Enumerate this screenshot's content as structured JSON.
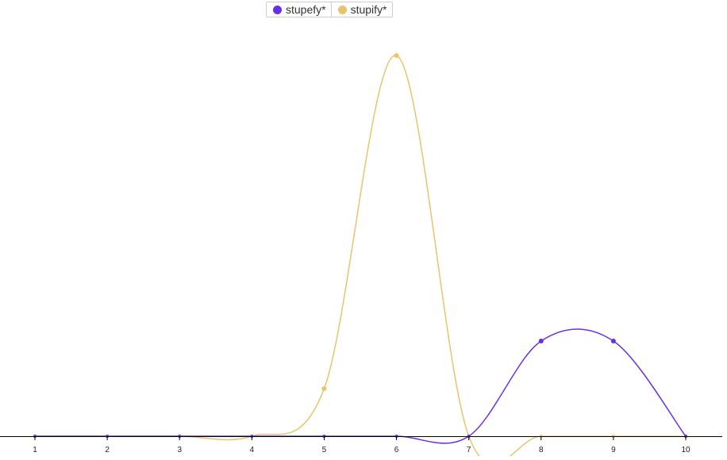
{
  "chart_data": {
    "type": "line",
    "categories": [
      "1",
      "2",
      "3",
      "4",
      "5",
      "6",
      "7",
      "8",
      "9",
      "10"
    ],
    "x": [
      1,
      2,
      3,
      4,
      5,
      6,
      7,
      8,
      9,
      10
    ],
    "series": [
      {
        "name": "stupefy*",
        "color": "#6a2ee8",
        "values": [
          0,
          0,
          0,
          0,
          0,
          0,
          0,
          0.25,
          0.25,
          0
        ]
      },
      {
        "name": "stupify*",
        "color": "#e6c56e",
        "values": [
          0,
          0,
          0,
          0,
          0.125,
          1,
          0,
          0,
          0,
          0
        ]
      }
    ],
    "xlabel": "",
    "ylabel": "",
    "ylim": [
      0,
      1
    ],
    "legend_position": "top-center",
    "grid": false,
    "curve": "smooth"
  }
}
